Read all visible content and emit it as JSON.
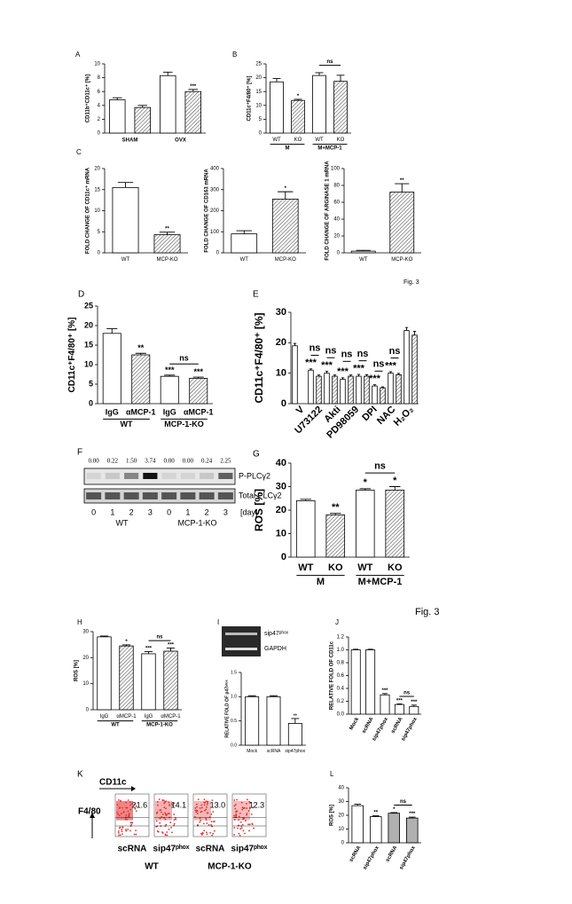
{
  "captions": [
    "Fig. 3",
    "Fig. 3"
  ],
  "chart_data": [
    {
      "type": "bar",
      "panel": "A",
      "ylabel": "CD11b⁺CD11c⁺ [%]",
      "ylim": [
        0,
        10
      ],
      "yticks": [
        0,
        2,
        4,
        6,
        8,
        10
      ],
      "groups": [
        "SHAM",
        "OVX"
      ],
      "values": [
        4.8,
        3.7,
        8.3,
        6.0
      ],
      "errors": [
        0.3,
        0.3,
        0.5,
        0.3
      ],
      "stars": [
        null,
        null,
        null,
        "***"
      ],
      "fills": [
        "white",
        "hatch",
        "white",
        "hatch"
      ]
    },
    {
      "type": "bar",
      "panel": "B",
      "ylabel": "CD11c⁺F4/80⁺ [%]",
      "ylim": [
        0,
        25
      ],
      "yticks": [
        0,
        5,
        10,
        15,
        20,
        25
      ],
      "categories": [
        "WT",
        "KO",
        "WT",
        "KO"
      ],
      "groups": [
        "M",
        "M+MCP-1"
      ],
      "values": [
        18.5,
        11.8,
        20.8,
        18.7
      ],
      "errors": [
        1.2,
        0.4,
        1.0,
        2.2
      ],
      "stars": [
        null,
        "*",
        null,
        null
      ],
      "fills": [
        "white",
        "hatch",
        "white",
        "hatch"
      ],
      "bracket": "ns"
    },
    {
      "type": "bar",
      "panel": "C",
      "ylabel": "FOLD CHANGE OF CD11c⁺ mRNA",
      "ylim": [
        0,
        20
      ],
      "yticks": [
        0,
        5,
        10,
        15,
        20
      ],
      "categories": [
        "WT",
        "MCP-KO"
      ],
      "values": [
        15.5,
        4.3
      ],
      "errors": [
        1.2,
        0.6
      ],
      "stars": [
        null,
        "**"
      ],
      "fills": [
        "white",
        "hatch"
      ]
    },
    {
      "type": "bar",
      "ylabel": "FOLD CHANGE OF CD163 mRNA",
      "ylim": [
        0,
        400
      ],
      "yticks": [
        0,
        100,
        200,
        300,
        400
      ],
      "categories": [
        "WT",
        "MCP-KO"
      ],
      "values": [
        90,
        255
      ],
      "errors": [
        15,
        35
      ],
      "stars": [
        null,
        "*"
      ],
      "fills": [
        "white",
        "hatch"
      ]
    },
    {
      "type": "bar",
      "ylabel": "FOLD CHANGE OF ARGINASE 1 mRNA",
      "ylim": [
        0,
        100
      ],
      "yticks": [
        0,
        20,
        40,
        60,
        80,
        100
      ],
      "categories": [
        "WT",
        "MCP-KO"
      ],
      "values": [
        2,
        72
      ],
      "errors": [
        1,
        10
      ],
      "stars": [
        null,
        "**"
      ],
      "fills": [
        "white",
        "hatch"
      ]
    },
    {
      "type": "bar",
      "panel": "D",
      "ylabel": "CD11c⁺F4/80⁺ [%]",
      "ylim": [
        0,
        25
      ],
      "yticks": [
        0,
        5,
        10,
        15,
        20,
        25
      ],
      "categories": [
        "IgG",
        "αMCP-1",
        "IgG",
        "αMCP-1"
      ],
      "groups": [
        "WT",
        "MCP-1-KO"
      ],
      "values": [
        18,
        12.5,
        7,
        6.5
      ],
      "errors": [
        1.2,
        0.4,
        0.3,
        0.3
      ],
      "stars": [
        null,
        "**",
        "***",
        "***"
      ],
      "fills": [
        "white",
        "hatch",
        "white",
        "hatch"
      ],
      "bracket": "ns"
    },
    {
      "type": "bar",
      "panel": "E",
      "ylabel": "CD11c⁺F4/80⁺ [%]",
      "ylim": [
        0,
        30
      ],
      "yticks": [
        0,
        10,
        20,
        30
      ],
      "groups": [
        "V",
        "U73122",
        "Akti",
        "PD98059",
        "DPI",
        "NAC",
        "H₂O₂"
      ],
      "rotate": true,
      "values": [
        19,
        null,
        11,
        9,
        10,
        9,
        8,
        9,
        9,
        9,
        5.8,
        5.2,
        10,
        9.5,
        24,
        22.5
      ],
      "errors": [
        0.8,
        null,
        0.4,
        0.4,
        0.6,
        0.4,
        0.5,
        0.4,
        0.6,
        0.5,
        0.4,
        0.3,
        0.5,
        0.4,
        1.0,
        1.2
      ],
      "stars": [
        null,
        null,
        "***",
        null,
        "***",
        null,
        "***",
        null,
        "***",
        null,
        "***",
        null,
        "***",
        null,
        null,
        null
      ],
      "fills": [
        "white",
        "hatch",
        "white",
        "hatch",
        "white",
        "hatch",
        "white",
        "hatch",
        "white",
        "hatch",
        "white",
        "hatch",
        "white",
        "hatch",
        "white",
        "hatch"
      ],
      "pair_labels": [
        null,
        "ns",
        "ns",
        "ns",
        "ns",
        "ns",
        "ns"
      ]
    },
    {
      "type": "blot",
      "panel": "F",
      "values": [
        0,
        0.22,
        1.5,
        3.74,
        0,
        0,
        0.24,
        2.25
      ],
      "value_labels": [
        "0.00",
        "0.22",
        "1.50",
        "3.74",
        "0.00",
        "0.00",
        "0.24",
        "2.25"
      ],
      "bands": [
        "P-PLCγ2",
        "Total PLCγ2"
      ],
      "lanes": [
        "0",
        "1",
        "2",
        "3",
        "0",
        "1",
        "2",
        "3"
      ],
      "unit": "[day]",
      "groups": [
        "WT",
        "MCP-1-KO"
      ]
    },
    {
      "type": "bar",
      "panel": "G",
      "ylabel": "ROS [%]",
      "ylim": [
        0,
        40
      ],
      "yticks": [
        0,
        10,
        20,
        30,
        40
      ],
      "categories": [
        "WT",
        "KO",
        "WT",
        "KO"
      ],
      "groups": [
        "M",
        "M+MCP-1"
      ],
      "values": [
        24,
        18,
        28.5,
        28.5
      ],
      "errors": [
        0.6,
        0.6,
        0.6,
        1.5
      ],
      "stars": [
        null,
        "**",
        "*",
        "*"
      ],
      "fills": [
        "white",
        "hatch",
        "white",
        "hatch"
      ],
      "bracket": "ns"
    },
    {
      "type": "bar",
      "panel": "H",
      "ylabel": "ROS [%]",
      "ylim": [
        0,
        30
      ],
      "yticks": [
        0,
        10,
        20,
        30
      ],
      "categories": [
        "IgG",
        "αMCP-1",
        "IgG",
        "αMCP-1"
      ],
      "groups": [
        "WT",
        "MCP-1-KO"
      ],
      "values": [
        28,
        24.5,
        21.5,
        22.5
      ],
      "errors": [
        0.3,
        0.4,
        0.8,
        1.2
      ],
      "stars": [
        null,
        "*",
        "***",
        "***"
      ],
      "fills": [
        "white",
        "hatch",
        "white",
        "hatch"
      ],
      "bracket": "ns"
    },
    {
      "type": "bar",
      "panel": "I",
      "gel": [
        "sip47ᵖʰᵒˣ",
        "GAPDH"
      ],
      "ylabel": "RELATIVE FOLD OF p47ᵖʰᵒˣ",
      "ylim": [
        0,
        1.5
      ],
      "yticks": [
        {
          "value": 0,
          "label": "0.0"
        },
        {
          "value": 0.5,
          "label": "0.5"
        },
        {
          "value": 1,
          "label": "1.0"
        },
        {
          "value": 1.5,
          "label": "1.5"
        }
      ],
      "categories": [
        "Mock",
        "scRNA",
        "sip47phox"
      ],
      "values": [
        1,
        1,
        0.45
      ],
      "errors": [
        0.02,
        0.02,
        0.1
      ],
      "stars": [
        null,
        null,
        "**"
      ],
      "fills": [
        "white",
        "white",
        "white"
      ]
    },
    {
      "type": "bar",
      "panel": "J",
      "ylabel": "RELATIVE FOLD OF CD11c",
      "ylim": [
        0,
        1.2
      ],
      "yticks": [
        {
          "value": 0,
          "label": "0.0"
        },
        {
          "value": 0.2,
          "label": "0.2"
        },
        {
          "value": 0.4,
          "label": "0.4"
        },
        {
          "value": 0.6,
          "label": "0.6"
        },
        {
          "value": 0.8,
          "label": "0.8"
        },
        {
          "value": 1,
          "label": "1.0"
        },
        {
          "value": 1.2,
          "label": "1.2"
        }
      ],
      "categories": [
        "Mock",
        "scRNA",
        "sip47phox",
        "scRNA",
        "sip47phox"
      ],
      "rotate": true,
      "values": [
        1.0,
        1.0,
        0.3,
        0.15,
        0.12
      ],
      "errors": [
        0.01,
        0.01,
        0.02,
        0.01,
        0.02
      ],
      "stars": [
        null,
        null,
        "***",
        "***",
        "***"
      ],
      "fills": [
        "white",
        "white",
        "white",
        "white",
        "white"
      ],
      "bracket": "ns"
    },
    {
      "type": "flow",
      "panel": "K",
      "axes": [
        "CD11c",
        "F4/80"
      ],
      "values": [
        21.6,
        14.1,
        13.0,
        12.3
      ],
      "value_labels": [
        "21.6",
        "14.1",
        "13.0",
        "12.3"
      ],
      "categories": [
        "scRNA",
        "sip47ᵖʰᵒˣ",
        "scRNA",
        "sip47ᵖʰᵒˣ"
      ],
      "groups": [
        "WT",
        "MCP-1-KO"
      ]
    },
    {
      "type": "bar",
      "panel": "L",
      "ylabel": "ROS [%]",
      "ylim": [
        0,
        40
      ],
      "yticks": [
        0,
        10,
        20,
        30,
        40
      ],
      "categories": [
        "scRNA",
        "sip47phox",
        "scRNA",
        "sip47phox"
      ],
      "rotate": true,
      "values": [
        27,
        19,
        21.5,
        18
      ],
      "errors": [
        1,
        0.6,
        0.5,
        0.7
      ],
      "stars": [
        null,
        "**",
        "*",
        "***"
      ],
      "fills": [
        "white",
        "white",
        "#b0b0b0",
        "#b0b0b0"
      ],
      "bracket": "ns"
    }
  ]
}
